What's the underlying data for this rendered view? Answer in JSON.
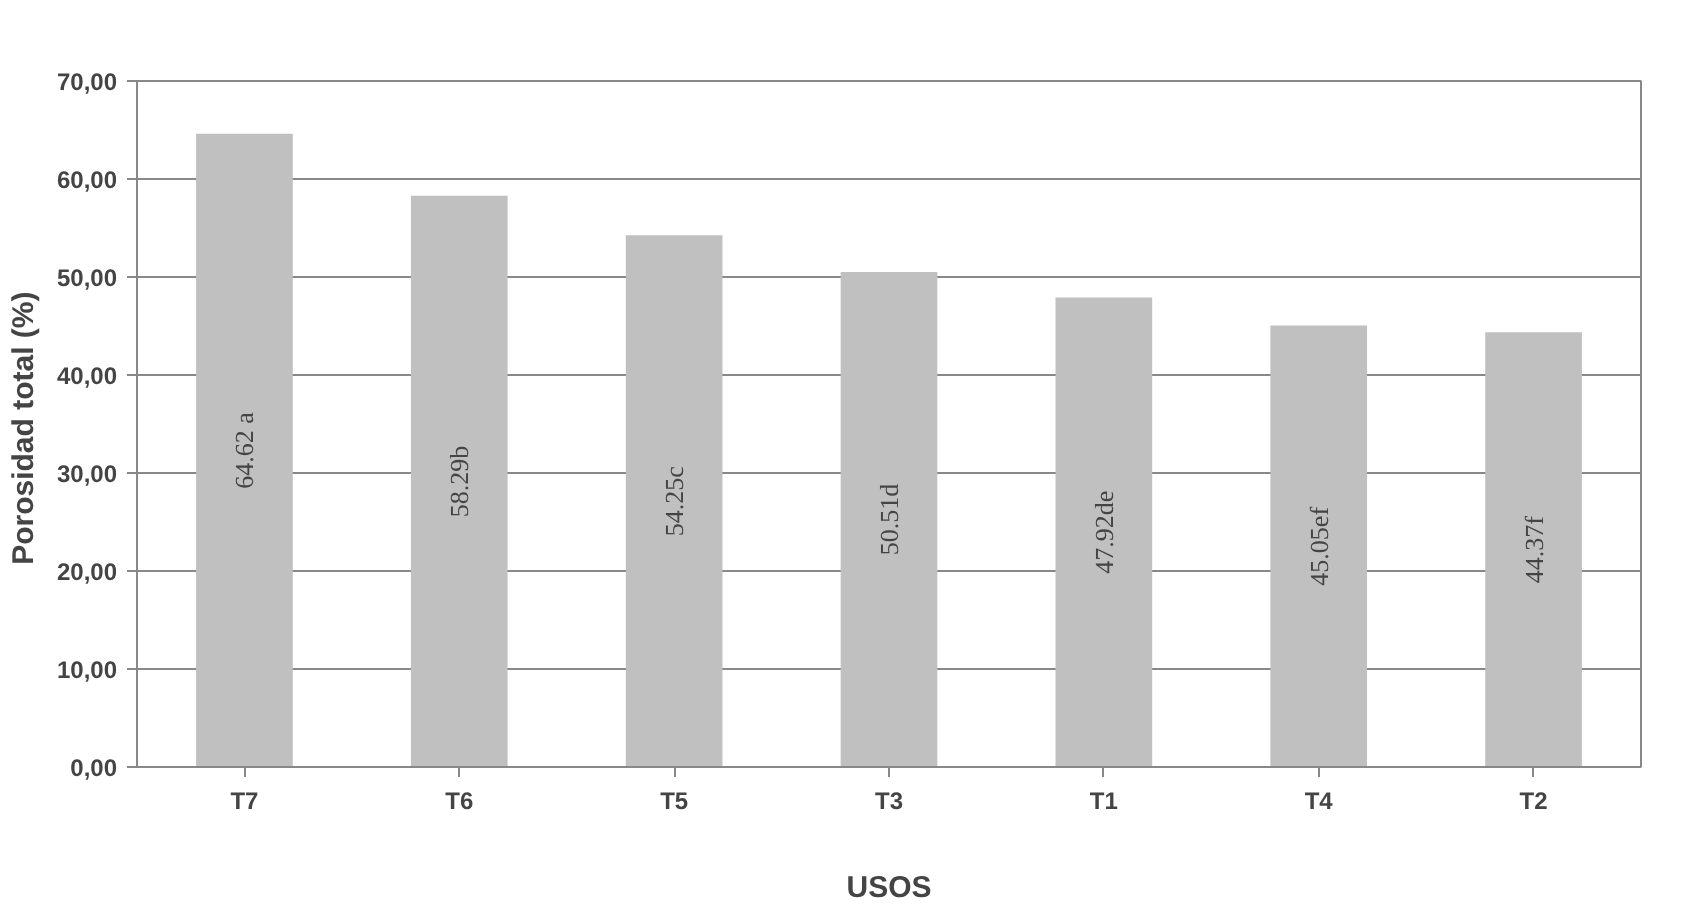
{
  "chart_data": {
    "type": "bar",
    "xlabel": "USOS",
    "ylabel": "Porosidad total  (%)",
    "categories": [
      "T7",
      "T6",
      "T5",
      "T3",
      "T1",
      "T4",
      "T2"
    ],
    "values": [
      64.62,
      58.29,
      54.25,
      50.51,
      47.92,
      45.05,
      44.37
    ],
    "value_labels": [
      "64.62 a",
      "58.29b",
      "54.25c",
      "50.51d",
      "47.92de",
      "45.05ef",
      "44.37f"
    ],
    "color": "#c0c0c0",
    "ylim": [
      0,
      70
    ],
    "yticks": [
      {
        "value": 0,
        "label": "0,00"
      },
      {
        "value": 10,
        "label": "10,00"
      },
      {
        "value": 20,
        "label": "20,00"
      },
      {
        "value": 30,
        "label": "30,00"
      },
      {
        "value": 40,
        "label": "40,00"
      },
      {
        "value": 50,
        "label": "50,00"
      },
      {
        "value": 60,
        "label": "60,00"
      },
      {
        "value": 70,
        "label": "70,00"
      }
    ],
    "grid": "y"
  }
}
